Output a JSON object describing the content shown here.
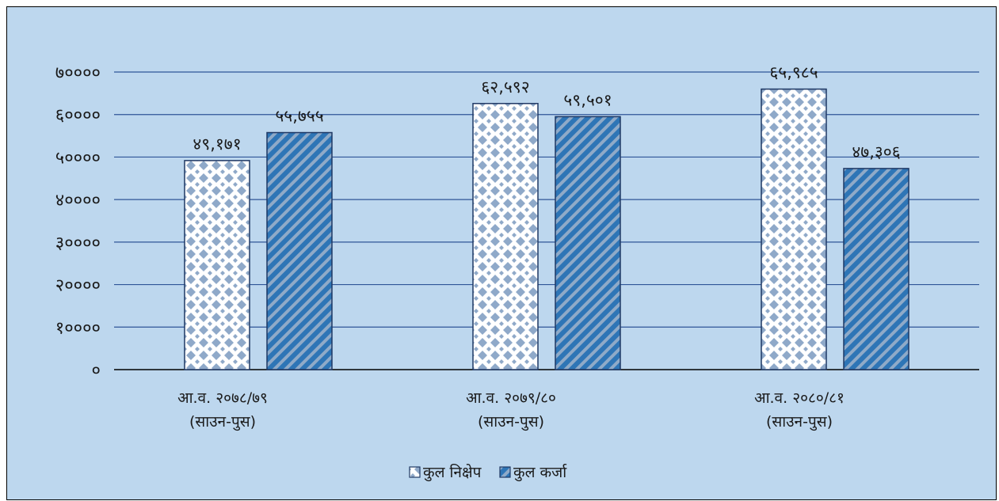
{
  "chart_data": {
    "type": "bar",
    "title": "",
    "xlabel": "",
    "ylabel": "",
    "categories": [
      [
        "आ.व. २०७८/७९",
        "(साउन-पुस)"
      ],
      [
        "आ.व. २०७९/८०",
        "(साउन-पुस)"
      ],
      [
        "आ.व. २०८०/८१",
        "(साउन-पुस)"
      ]
    ],
    "series": [
      {
        "name": "कुल निक्षेप",
        "values": [
          49171,
          62592,
          65985
        ],
        "labels": [
          "४९,१७१",
          "६२,५९२",
          "६५,९८५"
        ],
        "pattern": "dotted-diamond",
        "color": "#ffffff"
      },
      {
        "name": "कुल कर्जा",
        "values": [
          55755,
          59501,
          47306
        ],
        "labels": [
          "५५,७५५",
          "५९,५०१",
          "४७,३०६"
        ],
        "pattern": "diagonal-stripe",
        "color": "#2e75b6"
      }
    ],
    "ylim": [
      0,
      70000
    ],
    "yticks": [
      0,
      10000,
      20000,
      30000,
      40000,
      50000,
      60000,
      70000
    ],
    "ytick_labels": [
      "०",
      "१००००",
      "२००००",
      "३००००",
      "४००००",
      "५००००",
      "६००००",
      "७००००"
    ],
    "grid": true,
    "legend_position": "bottom",
    "colors": {
      "background": "#bdd7ee",
      "gridline": "#2f5597",
      "bar_outline": "#1f3864",
      "pattern_blue": "#8fa9c9",
      "stripe_dark": "#2e75b6",
      "stripe_light": "#8faac8"
    }
  }
}
